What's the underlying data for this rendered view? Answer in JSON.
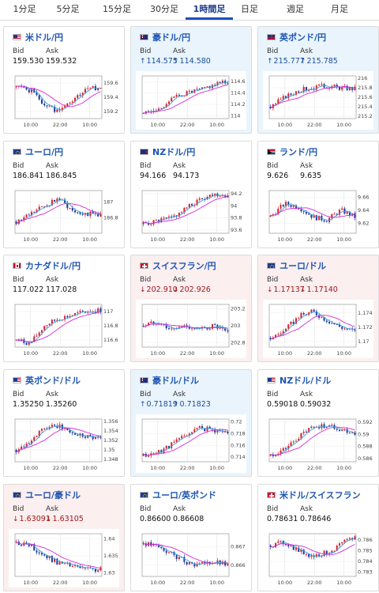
{
  "tabs": [
    {
      "label": "1分足",
      "active": false
    },
    {
      "label": "5分足",
      "active": false
    },
    {
      "label": "15分足",
      "active": false
    },
    {
      "label": "30分足",
      "active": false
    },
    {
      "label": "1時間足",
      "active": true
    },
    {
      "label": "日足",
      "active": false
    },
    {
      "label": "週足",
      "active": false
    },
    {
      "label": "月足",
      "active": false
    }
  ],
  "colors": {
    "bull": "#d8262e",
    "bear": "#1f3d99",
    "ma_short": "#37a3e6",
    "ma_long": "#d629d6",
    "title": "#1e56b3"
  },
  "labels": {
    "bid": "Bid",
    "ask": "Ask"
  },
  "xticks": [
    "10:00",
    "22:00",
    "10:00"
  ],
  "cards": [
    {
      "pair": "米ドル/円",
      "flag": "us",
      "trend": "none",
      "bid": "159.530",
      "ask": "159.532",
      "yticks": [
        "159.6",
        "159.4",
        "159.2"
      ],
      "ylim": [
        159.1,
        159.7
      ],
      "seed": 1,
      "chart_data": {
        "type": "candlestick",
        "close_path": [
          159.55,
          159.5,
          159.3,
          159.2,
          159.35,
          159.5,
          159.55
        ]
      }
    },
    {
      "pair": "豪ドル/円",
      "flag": "au",
      "trend": "up",
      "bid": "114.575",
      "ask": "114.580",
      "yticks": [
        "114.6",
        "114.4",
        "114.2",
        "114"
      ],
      "ylim": [
        113.95,
        114.7
      ],
      "seed": 2,
      "chart_data": {
        "type": "candlestick",
        "close_path": [
          114.05,
          114.1,
          114.3,
          114.4,
          114.45,
          114.55,
          114.6
        ]
      }
    },
    {
      "pair": "英ポンド/円",
      "flag": "uk",
      "trend": "up",
      "bid": "215.777",
      "ask": "215.785",
      "yticks": [
        "216",
        "215.8",
        "215.6",
        "215.4",
        "215.2"
      ],
      "ylim": [
        215.15,
        216.05
      ],
      "seed": 3,
      "chart_data": {
        "type": "candlestick",
        "close_path": [
          215.4,
          215.6,
          215.75,
          215.8,
          215.85,
          215.8,
          215.78
        ]
      }
    },
    {
      "pair": "ユーロ/円",
      "flag": "eu",
      "trend": "none",
      "bid": "186.841",
      "ask": "186.845",
      "yticks": [
        "187",
        "186.8"
      ],
      "ylim": [
        186.6,
        187.15
      ],
      "seed": 4,
      "chart_data": {
        "type": "candlestick",
        "close_path": [
          186.75,
          186.85,
          186.95,
          187.05,
          186.9,
          186.85,
          186.84
        ]
      }
    },
    {
      "pair": "NZドル/円",
      "flag": "nz",
      "trend": "none",
      "bid": "94.166",
      "ask": "94.173",
      "yticks": [
        "94.2",
        "94",
        "93.8",
        "93.6"
      ],
      "ylim": [
        93.55,
        94.25
      ],
      "seed": 5,
      "chart_data": {
        "type": "candlestick",
        "close_path": [
          93.7,
          93.75,
          93.8,
          93.95,
          94.1,
          94.2,
          94.17
        ]
      }
    },
    {
      "pair": "ランド/円",
      "flag": "za",
      "trend": "none",
      "bid": "9.626",
      "ask": "9.635",
      "yticks": [
        "9.66",
        "9.64",
        "9.62"
      ],
      "ylim": [
        9.605,
        9.67
      ],
      "seed": 6,
      "chart_data": {
        "type": "candlestick",
        "close_path": [
          9.63,
          9.65,
          9.645,
          9.63,
          9.625,
          9.64,
          9.63
        ]
      }
    },
    {
      "pair": "カナダドル/円",
      "flag": "ca",
      "trend": "none",
      "bid": "117.022",
      "ask": "117.028",
      "yticks": [
        "117",
        "116.8",
        "116.6"
      ],
      "ylim": [
        116.5,
        117.1
      ],
      "seed": 7,
      "chart_data": {
        "type": "candlestick",
        "close_path": [
          116.6,
          116.55,
          116.8,
          116.9,
          116.95,
          117.0,
          117.02
        ]
      }
    },
    {
      "pair": "スイスフラン/円",
      "flag": "ch",
      "trend": "down",
      "bid": "202.910",
      "ask": "202.926",
      "yticks": [
        "203.2",
        "203",
        "202.8"
      ],
      "ylim": [
        202.75,
        203.25
      ],
      "seed": 8,
      "chart_data": {
        "type": "candlestick",
        "close_path": [
          203.0,
          203.05,
          202.95,
          203.0,
          202.95,
          203.0,
          202.91
        ]
      }
    },
    {
      "pair": "ユーロ/ドル",
      "flag": "eu",
      "trend": "down",
      "bid": "1.17137",
      "ask": "1.17140",
      "yticks": [
        "1.174",
        "1.172",
        "1.17"
      ],
      "ylim": [
        1.1692,
        1.1752
      ],
      "seed": 9,
      "chart_data": {
        "type": "candlestick",
        "close_path": [
          1.1705,
          1.1715,
          1.1735,
          1.1742,
          1.173,
          1.172,
          1.1714
        ]
      }
    },
    {
      "pair": "英ポンド/ドル",
      "flag": "us",
      "trend": "none",
      "bid": "1.35250",
      "ask": "1.35260",
      "yticks": [
        "1.356",
        "1.354",
        "1.352",
        "1.35",
        "1.348"
      ],
      "ylim": [
        1.3475,
        1.3565
      ],
      "seed": 10,
      "chart_data": {
        "type": "candlestick",
        "close_path": [
          1.35,
          1.352,
          1.3545,
          1.355,
          1.3535,
          1.353,
          1.3525
        ]
      }
    },
    {
      "pair": "豪ドル/ドル",
      "flag": "au",
      "trend": "up",
      "bid": "0.71819",
      "ask": "0.71823",
      "yticks": [
        "0.72",
        "0.718",
        "0.716",
        "0.714"
      ],
      "ylim": [
        0.7132,
        0.7205
      ],
      "seed": 11,
      "chart_data": {
        "type": "candlestick",
        "close_path": [
          0.7142,
          0.7148,
          0.7162,
          0.7178,
          0.719,
          0.7186,
          0.7182
        ]
      }
    },
    {
      "pair": "NZドル/ドル",
      "flag": "us",
      "trend": "none",
      "bid": "0.59018",
      "ask": "0.59032",
      "yticks": [
        "0.592",
        "0.59",
        "0.588",
        "0.586"
      ],
      "ylim": [
        0.5855,
        0.5925
      ],
      "seed": 12,
      "chart_data": {
        "type": "candlestick",
        "close_path": [
          0.5865,
          0.5875,
          0.5895,
          0.5912,
          0.5915,
          0.5908,
          0.5902
        ]
      }
    },
    {
      "pair": "ユーロ/豪ドル",
      "flag": "eu",
      "trend": "down",
      "bid": "1.63091",
      "ask": "1.63105",
      "yticks": [
        "1.64",
        "1.635",
        "1.63"
      ],
      "ylim": [
        1.629,
        1.6415
      ],
      "seed": 13,
      "chart_data": {
        "type": "candlestick",
        "close_path": [
          1.639,
          1.638,
          1.635,
          1.633,
          1.632,
          1.631,
          1.6309
        ]
      }
    },
    {
      "pair": "ユーロ/英ポンド",
      "flag": "eu",
      "trend": "none",
      "bid": "0.86600",
      "ask": "0.86608",
      "yticks": [
        "0.867",
        "0.866"
      ],
      "ylim": [
        0.8654,
        0.8677
      ],
      "seed": 14,
      "chart_data": {
        "type": "candlestick",
        "close_path": [
          0.8672,
          0.867,
          0.8666,
          0.8662,
          0.866,
          0.8662,
          0.866
        ]
      }
    },
    {
      "pair": "米ドル/スイスフラン",
      "flag": "ch",
      "trend": "none",
      "bid": "0.78631",
      "ask": "0.78646",
      "yticks": [
        "0.786",
        "0.785",
        "0.784",
        "0.783"
      ],
      "ylim": [
        0.7826,
        0.7866
      ],
      "seed": 15,
      "chart_data": {
        "type": "candlestick",
        "close_path": [
          0.7855,
          0.7858,
          0.785,
          0.7845,
          0.7848,
          0.7856,
          0.7863
        ]
      }
    }
  ]
}
